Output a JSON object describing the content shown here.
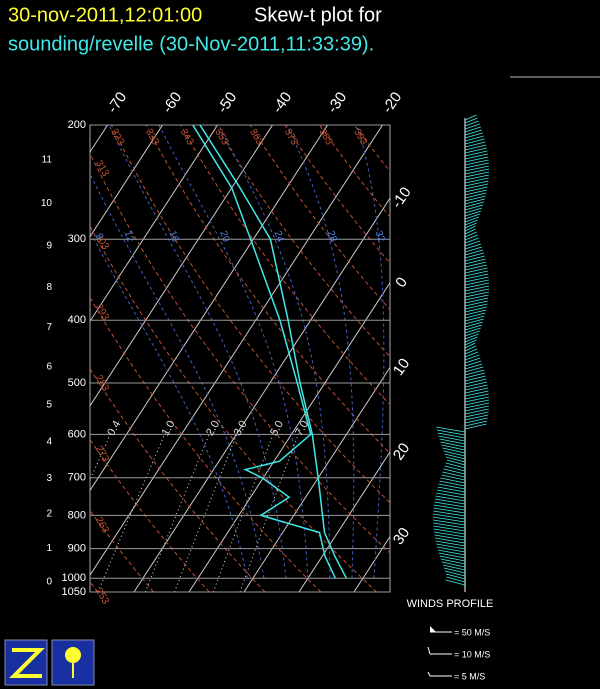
{
  "header": {
    "title": "30-nov-2011,12:01:00",
    "title_suffix": "Skew-t plot for",
    "subtitle": "sounding/revelle (30-Nov-2011,11:33:39)."
  },
  "chart_data": {
    "type": "skewt",
    "ylim": [
      1050,
      200
    ],
    "log_scale": true,
    "yticks": [
      200,
      300,
      400,
      500,
      600,
      700,
      800,
      900,
      1000,
      1050
    ],
    "xticks": [
      -70,
      -60,
      -50,
      -40,
      -30,
      -20,
      -10,
      0,
      10,
      20,
      30
    ],
    "height_ticks": [
      0,
      1,
      2,
      3,
      4,
      5,
      6,
      7,
      8,
      9,
      10,
      11
    ],
    "dry_adiabats": [
      253,
      263,
      273,
      283,
      293,
      303,
      313,
      323,
      333,
      343,
      353,
      363,
      373,
      383,
      393
    ],
    "moist_adiabats": [
      9,
      12,
      16,
      20,
      24,
      28,
      32
    ],
    "mixing_ratios": [
      {
        "value": 0.4,
        "label": "0.4"
      },
      {
        "value": 1,
        "label": "1.0"
      },
      {
        "value": 2,
        "label": "2.0"
      },
      {
        "value": 3,
        "label": "3.0"
      },
      {
        "value": 5,
        "label": "5.0"
      },
      {
        "value": 7,
        "label": "7.0"
      }
    ],
    "series": [
      {
        "color": "#40e8e8",
        "pressure": [
          1000,
          925,
          850,
          700,
          600,
          500,
          400,
          300,
          250,
          200
        ],
        "values": [
          27,
          22.3,
          17.6,
          10,
          3.8,
          -4.5,
          -14.1,
          -26.9,
          -38.5,
          -53.2
        ]
      },
      {
        "color": "#40e8e8",
        "pressure": [
          1000,
          925,
          850,
          800,
          750,
          700,
          680,
          660,
          600,
          500,
          400,
          300,
          250,
          200
        ],
        "values": [
          25,
          20.5,
          16.7,
          4,
          7,
          -0.2,
          -4.2,
          1,
          3.5,
          -5,
          -15.6,
          -30.5,
          -40,
          -54.5
        ]
      }
    ],
    "winds_title": "WINDS PROFILE",
    "wind_legend": [
      {
        "value": 50,
        "label": "= 50 M/S"
      },
      {
        "value": 10,
        "label": "= 10 M/S"
      },
      {
        "value": 5,
        "label": "= 5 M/S"
      }
    ]
  }
}
